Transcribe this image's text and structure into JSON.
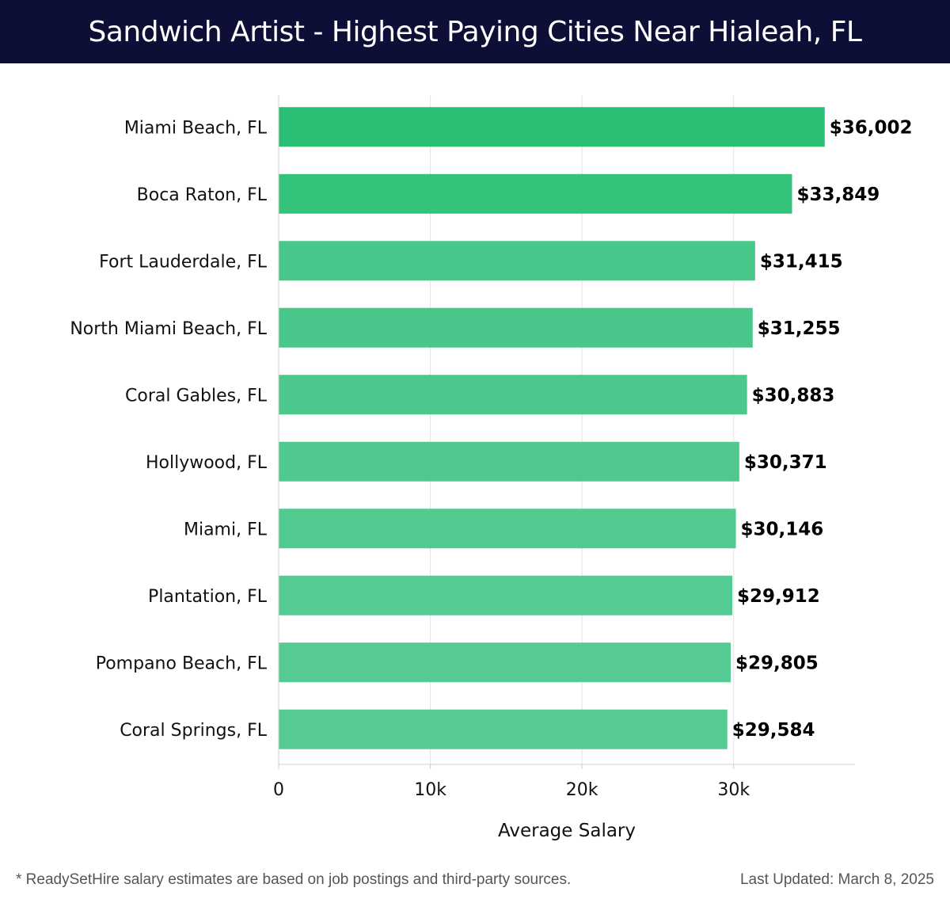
{
  "header": {
    "title": "Sandwich Artist - Highest Paying Cities Near Hialeah, FL",
    "background": "#0d0f36"
  },
  "chart_data": {
    "type": "bar",
    "orientation": "horizontal",
    "title": "Sandwich Artist - Highest Paying Cities Near Hialeah, FL",
    "xlabel": "Average Salary",
    "ylabel": "",
    "xlim": [
      0,
      38000
    ],
    "xticks": [
      0,
      10000,
      20000,
      30000
    ],
    "xtick_labels": [
      "0",
      "10k",
      "20k",
      "30k"
    ],
    "grid": true,
    "categories": [
      "Miami Beach, FL",
      "Boca Raton, FL",
      "Fort Lauderdale, FL",
      "North Miami Beach, FL",
      "Coral Gables, FL",
      "Hollywood, FL",
      "Miami, FL",
      "Plantation, FL",
      "Pompano Beach, FL",
      "Coral Springs, FL"
    ],
    "values": [
      36002,
      33849,
      31415,
      31255,
      30883,
      30371,
      30146,
      29912,
      29805,
      29584
    ],
    "value_labels": [
      "$36,002",
      "$33,849",
      "$31,415",
      "$31,255",
      "$30,883",
      "$30,371",
      "$30,146",
      "$29,912",
      "$29,805",
      "$29,584"
    ],
    "bar_colors": [
      "#2bbf75",
      "#33c37b",
      "#48c78a",
      "#49c78b",
      "#4cc88c",
      "#50c98f",
      "#51ca90",
      "#54cb92",
      "#55cb93",
      "#57cb94"
    ]
  },
  "footer": {
    "note": "* ReadySetHire salary estimates are based on job postings and third-party sources.",
    "updated": "Last Updated: March 8, 2025"
  }
}
